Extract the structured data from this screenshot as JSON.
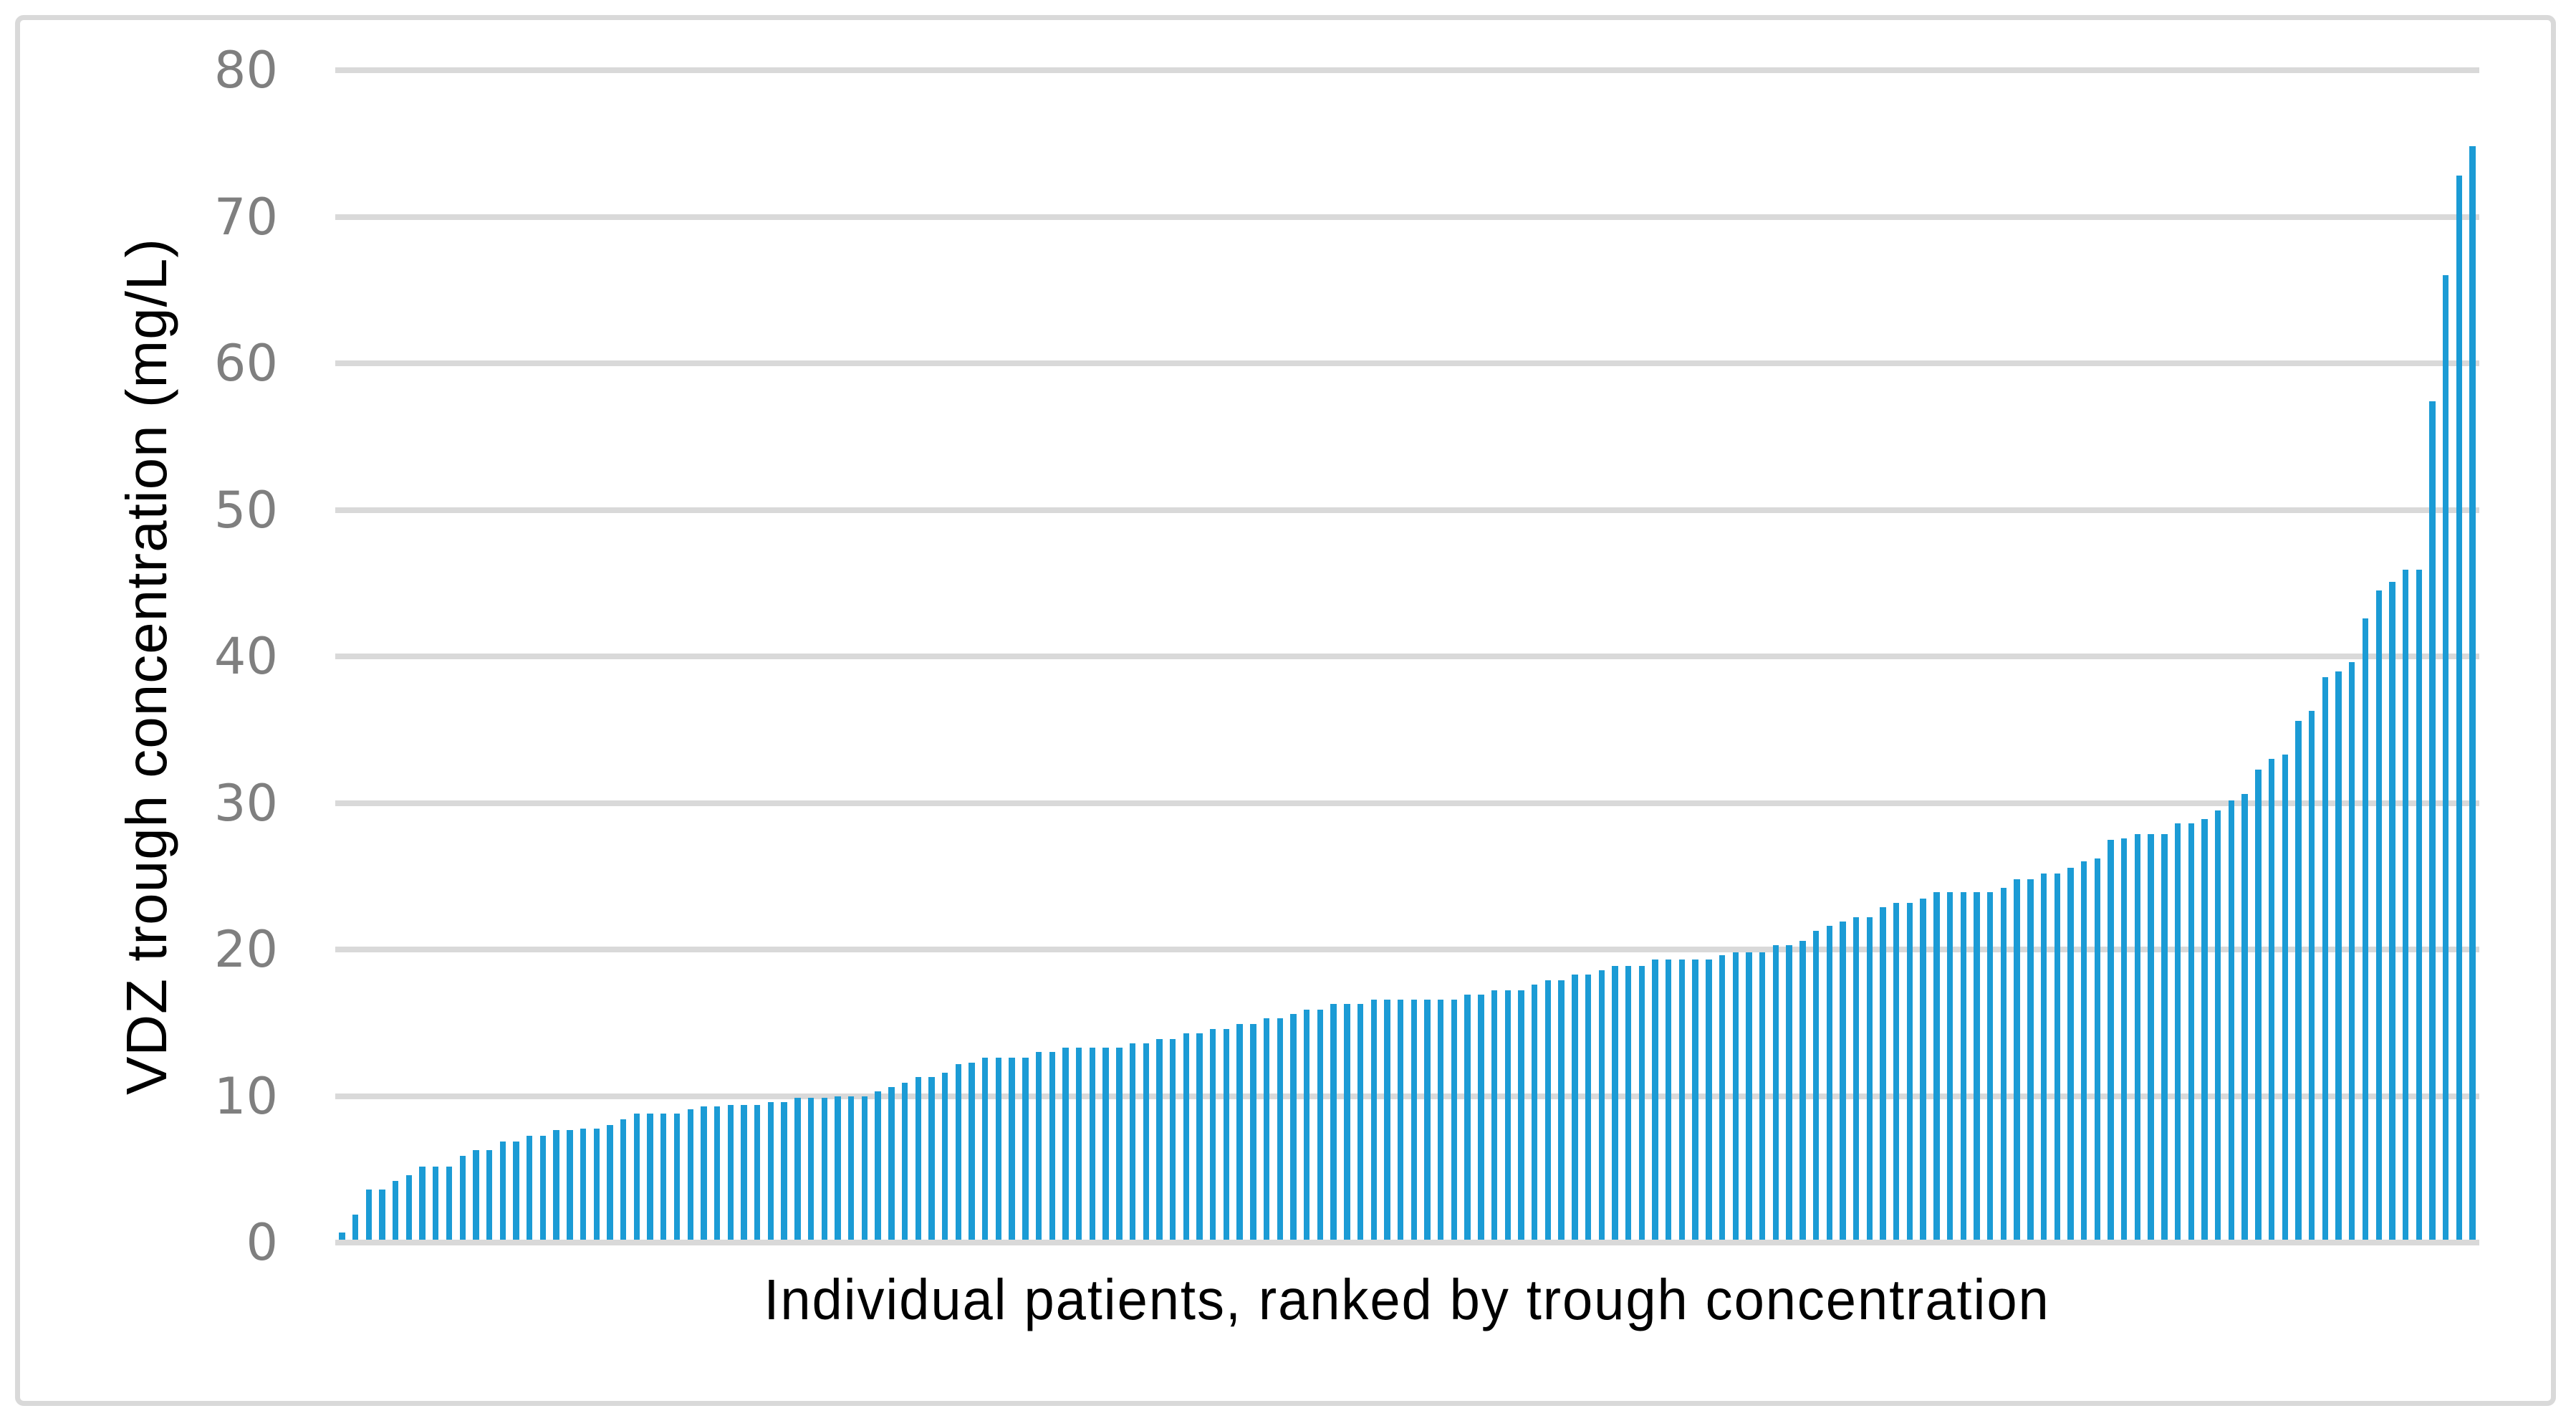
{
  "figure": {
    "background_color": "#ffffff",
    "border_color": "#d9d9d9"
  },
  "chart_data": {
    "type": "bar",
    "title": "",
    "xlabel": "Individual patients, ranked by trough concentration",
    "ylabel": "VDZ trough concentration (mg/L)",
    "ylim": [
      0,
      80
    ],
    "yticks": [
      0,
      10,
      20,
      30,
      40,
      50,
      60,
      70,
      80
    ],
    "grid": "horizontal",
    "legend": "none",
    "bar_color": "#1b9bd5",
    "gridline_color": "#d9d9d9",
    "tick_label_color": "#7f7f7f",
    "axis_title_color": "#000000",
    "n_bars": 160,
    "x_description": "160 individual patients sorted ascending by VDZ trough concentration",
    "values": [
      0.5,
      1.7,
      3.4,
      3.4,
      4.0,
      4.4,
      5.0,
      5.0,
      5.0,
      5.7,
      6.1,
      6.1,
      6.7,
      6.7,
      7.1,
      7.1,
      7.5,
      7.5,
      7.6,
      7.6,
      7.8,
      8.2,
      8.6,
      8.6,
      8.6,
      8.6,
      8.9,
      9.1,
      9.1,
      9.2,
      9.2,
      9.2,
      9.4,
      9.4,
      9.7,
      9.7,
      9.7,
      9.8,
      9.8,
      9.8,
      10.1,
      10.4,
      10.7,
      11.1,
      11.1,
      11.4,
      12.0,
      12.1,
      12.4,
      12.4,
      12.4,
      12.4,
      12.8,
      12.8,
      13.1,
      13.1,
      13.1,
      13.1,
      13.1,
      13.4,
      13.4,
      13.7,
      13.7,
      14.1,
      14.1,
      14.4,
      14.4,
      14.7,
      14.7,
      15.1,
      15.1,
      15.4,
      15.7,
      15.7,
      16.1,
      16.1,
      16.1,
      16.4,
      16.4,
      16.4,
      16.4,
      16.4,
      16.4,
      16.4,
      16.7,
      16.7,
      17.0,
      17.0,
      17.0,
      17.4,
      17.7,
      17.7,
      18.1,
      18.1,
      18.4,
      18.7,
      18.7,
      18.7,
      19.1,
      19.1,
      19.1,
      19.1,
      19.1,
      19.4,
      19.6,
      19.6,
      19.6,
      20.1,
      20.1,
      20.4,
      21.1,
      21.4,
      21.7,
      22.0,
      22.0,
      22.7,
      23.0,
      23.0,
      23.3,
      23.7,
      23.7,
      23.7,
      23.7,
      23.7,
      24.0,
      24.6,
      24.6,
      25.0,
      25.0,
      25.4,
      25.8,
      26.0,
      27.3,
      27.4,
      27.7,
      27.7,
      27.7,
      28.4,
      28.4,
      28.7,
      29.3,
      30.0,
      30.4,
      32.1,
      32.8,
      33.1,
      35.4,
      36.1,
      38.4,
      38.8,
      39.4,
      42.4,
      44.3,
      44.9,
      45.7,
      45.7,
      57.2,
      65.8,
      72.6,
      74.6
    ]
  }
}
